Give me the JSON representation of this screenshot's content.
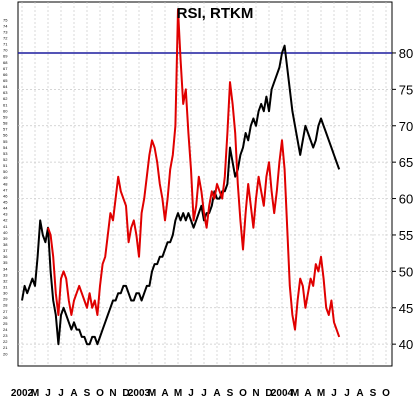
{
  "chart_data": {
    "type": "line",
    "title": "RSI, RTKM",
    "xlabel": "",
    "ylabel": "",
    "ylim": [
      37,
      87
    ],
    "grid": true,
    "reference_line": {
      "value": 80,
      "color": "#1b1b9e"
    },
    "y_ticks_right": [
      40,
      45,
      50,
      55,
      60,
      65,
      70,
      75,
      80
    ],
    "y_ticks_left_min": 20,
    "y_ticks_left_max": 75,
    "x_ticks": [
      {
        "label": "2002",
        "t": 0
      },
      {
        "label": "M",
        "t": 1
      },
      {
        "label": "J",
        "t": 2
      },
      {
        "label": "J",
        "t": 3
      },
      {
        "label": "A",
        "t": 4
      },
      {
        "label": "S",
        "t": 5
      },
      {
        "label": "O",
        "t": 6
      },
      {
        "label": "N",
        "t": 7
      },
      {
        "label": "D",
        "t": 8
      },
      {
        "label": "2003",
        "t": 9
      },
      {
        "label": "M",
        "t": 10
      },
      {
        "label": "A",
        "t": 11
      },
      {
        "label": "M",
        "t": 12
      },
      {
        "label": "J",
        "t": 13
      },
      {
        "label": "J",
        "t": 14
      },
      {
        "label": "A",
        "t": 15
      },
      {
        "label": "S",
        "t": 16
      },
      {
        "label": "O",
        "t": 17
      },
      {
        "label": "N",
        "t": 18
      },
      {
        "label": "D",
        "t": 19
      },
      {
        "label": "2004",
        "t": 20
      },
      {
        "label": "M",
        "t": 21
      },
      {
        "label": "A",
        "t": 22
      },
      {
        "label": "M",
        "t": 23
      },
      {
        "label": "J",
        "t": 24
      },
      {
        "label": "J",
        "t": 25
      },
      {
        "label": "A",
        "t": 26
      },
      {
        "label": "S",
        "t": 27
      },
      {
        "label": "O",
        "t": 28
      }
    ],
    "series": [
      {
        "color": "#000000",
        "points": [
          [
            0.0,
            46
          ],
          [
            0.2,
            48
          ],
          [
            0.4,
            47
          ],
          [
            0.6,
            48
          ],
          [
            0.8,
            49
          ],
          [
            1.0,
            48
          ],
          [
            1.2,
            52
          ],
          [
            1.4,
            57
          ],
          [
            1.6,
            55
          ],
          [
            1.8,
            54
          ],
          [
            2.0,
            56
          ],
          [
            2.2,
            50
          ],
          [
            2.4,
            46
          ],
          [
            2.6,
            44
          ],
          [
            2.8,
            40
          ],
          [
            3.0,
            44
          ],
          [
            3.2,
            45
          ],
          [
            3.4,
            44
          ],
          [
            3.6,
            43
          ],
          [
            3.8,
            42
          ],
          [
            4.0,
            43
          ],
          [
            4.2,
            42
          ],
          [
            4.4,
            42
          ],
          [
            4.6,
            41
          ],
          [
            4.8,
            41
          ],
          [
            5.0,
            40
          ],
          [
            5.2,
            40
          ],
          [
            5.4,
            41
          ],
          [
            5.6,
            41
          ],
          [
            5.8,
            40
          ],
          [
            6.0,
            41
          ],
          [
            6.2,
            42
          ],
          [
            6.4,
            43
          ],
          [
            6.6,
            44
          ],
          [
            6.8,
            45
          ],
          [
            7.0,
            46
          ],
          [
            7.2,
            46
          ],
          [
            7.4,
            47
          ],
          [
            7.6,
            47
          ],
          [
            7.8,
            48
          ],
          [
            8.0,
            48
          ],
          [
            8.2,
            47
          ],
          [
            8.4,
            46
          ],
          [
            8.6,
            46
          ],
          [
            8.8,
            47
          ],
          [
            9.0,
            47
          ],
          [
            9.2,
            46
          ],
          [
            9.4,
            47
          ],
          [
            9.6,
            48
          ],
          [
            9.8,
            48
          ],
          [
            10.0,
            50
          ],
          [
            10.2,
            51
          ],
          [
            10.4,
            51
          ],
          [
            10.6,
            52
          ],
          [
            10.8,
            52
          ],
          [
            11.0,
            53
          ],
          [
            11.2,
            54
          ],
          [
            11.4,
            54
          ],
          [
            11.6,
            55
          ],
          [
            11.8,
            57
          ],
          [
            12.0,
            58
          ],
          [
            12.2,
            57
          ],
          [
            12.4,
            58
          ],
          [
            12.6,
            57
          ],
          [
            12.8,
            58
          ],
          [
            13.0,
            57
          ],
          [
            13.2,
            56
          ],
          [
            13.4,
            57
          ],
          [
            13.6,
            58
          ],
          [
            13.8,
            59
          ],
          [
            14.0,
            57
          ],
          [
            14.2,
            58
          ],
          [
            14.4,
            58
          ],
          [
            14.6,
            59
          ],
          [
            14.8,
            61
          ],
          [
            15.0,
            60
          ],
          [
            15.2,
            60
          ],
          [
            15.4,
            61
          ],
          [
            15.6,
            61
          ],
          [
            15.8,
            62
          ],
          [
            16.0,
            67
          ],
          [
            16.2,
            65
          ],
          [
            16.4,
            63
          ],
          [
            16.6,
            64
          ],
          [
            16.8,
            66
          ],
          [
            17.0,
            67
          ],
          [
            17.2,
            69
          ],
          [
            17.4,
            68
          ],
          [
            17.6,
            70
          ],
          [
            17.8,
            71
          ],
          [
            18.0,
            70
          ],
          [
            18.2,
            72
          ],
          [
            18.4,
            73
          ],
          [
            18.6,
            72
          ],
          [
            18.8,
            74
          ],
          [
            19.0,
            72
          ],
          [
            19.2,
            75
          ],
          [
            19.4,
            76
          ],
          [
            19.6,
            77
          ],
          [
            19.8,
            78
          ],
          [
            20.0,
            80
          ],
          [
            20.2,
            81
          ],
          [
            20.4,
            78
          ],
          [
            20.6,
            75
          ],
          [
            20.8,
            72
          ],
          [
            21.0,
            70
          ],
          [
            21.2,
            68
          ],
          [
            21.4,
            66
          ],
          [
            21.6,
            68
          ],
          [
            21.8,
            70
          ],
          [
            22.0,
            69
          ],
          [
            22.2,
            68
          ],
          [
            22.4,
            67
          ],
          [
            22.6,
            68
          ],
          [
            22.8,
            70
          ],
          [
            23.0,
            71
          ],
          [
            23.2,
            70
          ],
          [
            23.4,
            69
          ],
          [
            23.6,
            68
          ],
          [
            23.8,
            67
          ],
          [
            24.0,
            66
          ],
          [
            24.2,
            65
          ],
          [
            24.4,
            64
          ]
        ]
      },
      {
        "color": "#e00000",
        "points": [
          [
            2.0,
            56
          ],
          [
            2.2,
            55
          ],
          [
            2.4,
            52
          ],
          [
            2.6,
            47
          ],
          [
            2.8,
            44
          ],
          [
            3.0,
            49
          ],
          [
            3.2,
            50
          ],
          [
            3.4,
            49
          ],
          [
            3.6,
            46
          ],
          [
            3.8,
            44
          ],
          [
            4.0,
            46
          ],
          [
            4.2,
            47
          ],
          [
            4.4,
            48
          ],
          [
            4.6,
            47
          ],
          [
            4.8,
            46
          ],
          [
            5.0,
            45
          ],
          [
            5.2,
            47
          ],
          [
            5.4,
            45
          ],
          [
            5.6,
            46
          ],
          [
            5.8,
            44
          ],
          [
            6.0,
            48
          ],
          [
            6.2,
            51
          ],
          [
            6.4,
            52
          ],
          [
            6.6,
            55
          ],
          [
            6.8,
            58
          ],
          [
            7.0,
            57
          ],
          [
            7.2,
            60
          ],
          [
            7.4,
            63
          ],
          [
            7.6,
            61
          ],
          [
            7.8,
            60
          ],
          [
            8.0,
            59
          ],
          [
            8.2,
            54
          ],
          [
            8.4,
            56
          ],
          [
            8.6,
            57
          ],
          [
            8.8,
            55
          ],
          [
            9.0,
            52
          ],
          [
            9.2,
            58
          ],
          [
            9.4,
            60
          ],
          [
            9.6,
            63
          ],
          [
            9.8,
            66
          ],
          [
            10.0,
            68
          ],
          [
            10.2,
            67
          ],
          [
            10.4,
            65
          ],
          [
            10.6,
            62
          ],
          [
            10.8,
            60
          ],
          [
            11.0,
            57
          ],
          [
            11.2,
            60
          ],
          [
            11.4,
            64
          ],
          [
            11.6,
            66
          ],
          [
            11.8,
            70
          ],
          [
            12.0,
            86
          ],
          [
            12.2,
            79
          ],
          [
            12.4,
            73
          ],
          [
            12.6,
            75
          ],
          [
            12.8,
            69
          ],
          [
            13.0,
            64
          ],
          [
            13.2,
            57
          ],
          [
            13.4,
            59
          ],
          [
            13.6,
            63
          ],
          [
            13.8,
            61
          ],
          [
            14.0,
            58
          ],
          [
            14.2,
            56
          ],
          [
            14.4,
            59
          ],
          [
            14.6,
            61
          ],
          [
            14.8,
            60
          ],
          [
            15.0,
            62
          ],
          [
            15.2,
            61
          ],
          [
            15.4,
            60
          ],
          [
            15.6,
            63
          ],
          [
            15.8,
            69
          ],
          [
            16.0,
            76
          ],
          [
            16.2,
            73
          ],
          [
            16.4,
            69
          ],
          [
            16.6,
            62
          ],
          [
            16.8,
            57
          ],
          [
            17.0,
            53
          ],
          [
            17.2,
            58
          ],
          [
            17.4,
            62
          ],
          [
            17.6,
            59
          ],
          [
            17.8,
            56
          ],
          [
            18.0,
            60
          ],
          [
            18.2,
            63
          ],
          [
            18.4,
            61
          ],
          [
            18.6,
            59
          ],
          [
            18.8,
            63
          ],
          [
            19.0,
            65
          ],
          [
            19.2,
            61
          ],
          [
            19.4,
            58
          ],
          [
            19.6,
            61
          ],
          [
            19.8,
            65
          ],
          [
            20.0,
            68
          ],
          [
            20.2,
            64
          ],
          [
            20.4,
            56
          ],
          [
            20.6,
            48
          ],
          [
            20.8,
            44
          ],
          [
            21.0,
            42
          ],
          [
            21.2,
            46
          ],
          [
            21.4,
            49
          ],
          [
            21.6,
            48
          ],
          [
            21.8,
            45
          ],
          [
            22.0,
            47
          ],
          [
            22.2,
            49
          ],
          [
            22.4,
            48
          ],
          [
            22.6,
            51
          ],
          [
            22.8,
            50
          ],
          [
            23.0,
            52
          ],
          [
            23.2,
            49
          ],
          [
            23.4,
            45
          ],
          [
            23.6,
            44
          ],
          [
            23.8,
            46
          ],
          [
            24.0,
            43
          ],
          [
            24.2,
            42
          ],
          [
            24.4,
            41
          ]
        ]
      }
    ]
  }
}
